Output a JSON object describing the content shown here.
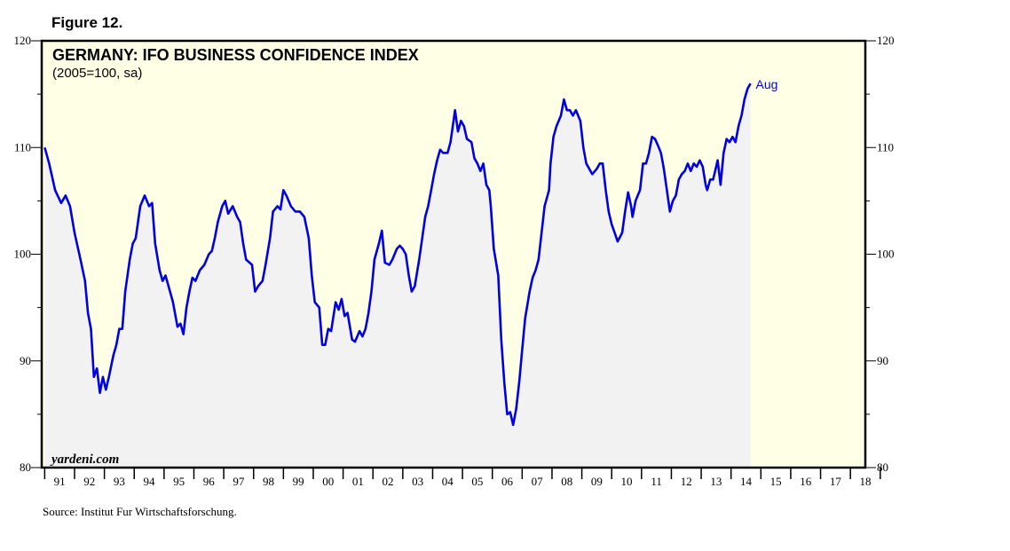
{
  "figure_label": "Figure 12.",
  "source": "Source:  Institut Fur Wirtschaftsforschung.",
  "colors": {
    "line": "#0000e0",
    "background": "#ffffe6",
    "area": "#f2f2f2",
    "annotation": "#0000e0"
  },
  "chart_data": {
    "type": "line",
    "title": "GERMANY: IFO BUSINESS CONFIDENCE INDEX",
    "subtitle": "(2005=100, sa)",
    "watermark": "yardeni.com",
    "annotation": "Aug",
    "ylim": [
      80,
      120
    ],
    "xlim": [
      1990.9,
      2018.5
    ],
    "y_ticks": [
      80,
      90,
      100,
      110,
      120
    ],
    "y_tick_labels": [
      "80",
      "90",
      "100",
      "110",
      "120"
    ],
    "x_tick_labels": [
      "91",
      "92",
      "93",
      "94",
      "95",
      "96",
      "97",
      "98",
      "99",
      "00",
      "01",
      "02",
      "03",
      "04",
      "05",
      "06",
      "07",
      "08",
      "09",
      "10",
      "11",
      "12",
      "13",
      "14",
      "15",
      "16",
      "17",
      "18"
    ],
    "grid": false,
    "series": [
      {
        "name": "IFO Business Confidence Index",
        "points": [
          [
            1991.0,
            110.0
          ],
          [
            1991.15,
            108.5
          ],
          [
            1991.35,
            106.0
          ],
          [
            1991.55,
            104.8
          ],
          [
            1991.7,
            105.5
          ],
          [
            1991.85,
            104.5
          ],
          [
            1992.0,
            102.0
          ],
          [
            1992.2,
            99.5
          ],
          [
            1992.35,
            97.5
          ],
          [
            1992.45,
            94.5
          ],
          [
            1992.55,
            93.0
          ],
          [
            1992.65,
            88.5
          ],
          [
            1992.75,
            89.3
          ],
          [
            1992.85,
            87.0
          ],
          [
            1992.95,
            88.5
          ],
          [
            1993.05,
            87.3
          ],
          [
            1993.15,
            88.5
          ],
          [
            1993.3,
            90.5
          ],
          [
            1993.4,
            91.5
          ],
          [
            1993.5,
            93.0
          ],
          [
            1993.6,
            93.0
          ],
          [
            1993.7,
            96.5
          ],
          [
            1993.85,
            99.5
          ],
          [
            1993.95,
            101.0
          ],
          [
            1994.05,
            101.5
          ],
          [
            1994.2,
            104.5
          ],
          [
            1994.35,
            105.5
          ],
          [
            1994.5,
            104.5
          ],
          [
            1994.6,
            104.8
          ],
          [
            1994.7,
            101.0
          ],
          [
            1994.85,
            98.5
          ],
          [
            1994.95,
            97.5
          ],
          [
            1995.05,
            98.0
          ],
          [
            1995.2,
            96.5
          ],
          [
            1995.3,
            95.5
          ],
          [
            1995.45,
            93.2
          ],
          [
            1995.55,
            93.5
          ],
          [
            1995.65,
            92.5
          ],
          [
            1995.75,
            95.0
          ],
          [
            1995.85,
            96.5
          ],
          [
            1995.95,
            97.8
          ],
          [
            1996.05,
            97.5
          ],
          [
            1996.2,
            98.5
          ],
          [
            1996.35,
            99.0
          ],
          [
            1996.5,
            100.0
          ],
          [
            1996.6,
            100.3
          ],
          [
            1996.7,
            101.5
          ],
          [
            1996.8,
            103.0
          ],
          [
            1996.95,
            104.5
          ],
          [
            1997.05,
            105.0
          ],
          [
            1997.15,
            103.8
          ],
          [
            1997.3,
            104.5
          ],
          [
            1997.45,
            103.5
          ],
          [
            1997.55,
            103.0
          ],
          [
            1997.65,
            101.0
          ],
          [
            1997.75,
            99.5
          ],
          [
            1997.95,
            99.0
          ],
          [
            1998.05,
            96.5
          ],
          [
            1998.15,
            97.0
          ],
          [
            1998.3,
            97.5
          ],
          [
            1998.4,
            99.0
          ],
          [
            1998.55,
            101.5
          ],
          [
            1998.65,
            104.0
          ],
          [
            1998.8,
            104.5
          ],
          [
            1998.9,
            104.2
          ],
          [
            1999.0,
            106.0
          ],
          [
            1999.1,
            105.5
          ],
          [
            1999.25,
            104.5
          ],
          [
            1999.4,
            104.0
          ],
          [
            1999.55,
            104.0
          ],
          [
            1999.7,
            103.5
          ],
          [
            1999.85,
            101.5
          ],
          [
            1999.95,
            98.0
          ],
          [
            2000.05,
            95.5
          ],
          [
            2000.2,
            95.0
          ],
          [
            2000.3,
            91.5
          ],
          [
            2000.4,
            91.5
          ],
          [
            2000.5,
            93.0
          ],
          [
            2000.6,
            92.8
          ],
          [
            2000.75,
            95.5
          ],
          [
            2000.85,
            94.8
          ],
          [
            2000.95,
            95.8
          ],
          [
            2001.05,
            94.2
          ],
          [
            2001.15,
            94.5
          ],
          [
            2001.3,
            92.0
          ],
          [
            2001.4,
            91.8
          ],
          [
            2001.55,
            92.8
          ],
          [
            2001.65,
            92.3
          ],
          [
            2001.75,
            93.0
          ],
          [
            2001.85,
            94.5
          ],
          [
            2001.95,
            96.5
          ],
          [
            2002.05,
            99.5
          ],
          [
            2002.2,
            101.0
          ],
          [
            2002.3,
            102.2
          ],
          [
            2002.4,
            99.2
          ],
          [
            2002.55,
            99.0
          ],
          [
            2002.65,
            99.5
          ],
          [
            2002.8,
            100.5
          ],
          [
            2002.9,
            100.8
          ],
          [
            2003.0,
            100.5
          ],
          [
            2003.1,
            100.0
          ],
          [
            2003.2,
            98.0
          ],
          [
            2003.3,
            96.5
          ],
          [
            2003.4,
            97.0
          ],
          [
            2003.55,
            99.5
          ],
          [
            2003.65,
            101.5
          ],
          [
            2003.75,
            103.5
          ],
          [
            2003.85,
            104.5
          ],
          [
            2003.95,
            106.0
          ],
          [
            2004.05,
            107.5
          ],
          [
            2004.15,
            108.8
          ],
          [
            2004.25,
            109.8
          ],
          [
            2004.35,
            109.5
          ],
          [
            2004.5,
            109.5
          ],
          [
            2004.6,
            110.5
          ],
          [
            2004.7,
            112.5
          ],
          [
            2004.75,
            113.5
          ],
          [
            2004.85,
            111.5
          ],
          [
            2004.95,
            112.5
          ],
          [
            2005.05,
            112.0
          ],
          [
            2005.15,
            110.8
          ],
          [
            2005.3,
            110.5
          ],
          [
            2005.4,
            109.0
          ],
          [
            2005.5,
            108.5
          ],
          [
            2005.6,
            107.8
          ],
          [
            2005.7,
            108.5
          ],
          [
            2005.8,
            106.5
          ],
          [
            2005.9,
            106.0
          ],
          [
            2005.95,
            104.5
          ],
          [
            2006.05,
            100.5
          ],
          [
            2006.2,
            98.0
          ],
          [
            2006.3,
            92.0
          ],
          [
            2006.4,
            88.0
          ],
          [
            2006.5,
            85.0
          ],
          [
            2006.6,
            85.2
          ],
          [
            2006.7,
            84.0
          ],
          [
            2006.8,
            85.5
          ],
          [
            2006.9,
            88.0
          ],
          [
            2007.0,
            91.0
          ],
          [
            2007.1,
            94.0
          ],
          [
            2007.25,
            96.5
          ],
          [
            2007.35,
            97.8
          ],
          [
            2007.45,
            98.5
          ],
          [
            2007.55,
            99.5
          ],
          [
            2007.65,
            102.0
          ],
          [
            2007.75,
            104.5
          ],
          [
            2007.9,
            106.0
          ],
          [
            2007.95,
            108.5
          ],
          [
            2008.05,
            111.0
          ],
          [
            2008.15,
            112.0
          ],
          [
            2008.3,
            113.0
          ],
          [
            2008.4,
            114.5
          ],
          [
            2008.5,
            113.5
          ],
          [
            2008.6,
            113.5
          ],
          [
            2008.7,
            113.0
          ],
          [
            2008.8,
            113.5
          ],
          [
            2008.95,
            112.5
          ],
          [
            2009.05,
            110.0
          ],
          [
            2009.15,
            108.5
          ],
          [
            2009.25,
            108.0
          ],
          [
            2009.35,
            107.5
          ],
          [
            2009.5,
            108.0
          ],
          [
            2009.6,
            108.5
          ],
          [
            2009.7,
            108.5
          ],
          [
            2009.8,
            106.0
          ],
          [
            2009.9,
            104.0
          ],
          [
            2010.0,
            102.8
          ],
          [
            2010.1,
            102.0
          ],
          [
            2010.2,
            101.2
          ],
          [
            2010.35,
            102.0
          ],
          [
            2010.45,
            104.0
          ],
          [
            2010.55,
            105.8
          ],
          [
            2010.65,
            104.5
          ],
          [
            2010.7,
            103.5
          ],
          [
            2010.8,
            105.0
          ],
          [
            2010.95,
            106.0
          ],
          [
            2011.05,
            108.5
          ],
          [
            2011.15,
            108.5
          ],
          [
            2011.25,
            109.5
          ],
          [
            2011.35,
            111.0
          ],
          [
            2011.45,
            110.8
          ],
          [
            2011.55,
            110.2
          ],
          [
            2011.65,
            109.5
          ],
          [
            2011.75,
            108.0
          ],
          [
            2011.85,
            106.0
          ],
          [
            2011.95,
            104.0
          ],
          [
            2012.05,
            105.0
          ],
          [
            2012.15,
            105.5
          ],
          [
            2012.25,
            107.0
          ],
          [
            2012.35,
            107.5
          ],
          [
            2012.45,
            107.8
          ],
          [
            2012.55,
            108.5
          ],
          [
            2012.65,
            107.8
          ],
          [
            2012.75,
            108.5
          ],
          [
            2012.85,
            108.2
          ],
          [
            2012.95,
            108.8
          ],
          [
            2013.05,
            108.2
          ],
          [
            2013.15,
            106.5
          ],
          [
            2013.2,
            106.0
          ],
          [
            2013.3,
            107.0
          ],
          [
            2013.4,
            107.0
          ],
          [
            2013.55,
            108.8
          ],
          [
            2013.65,
            106.5
          ],
          [
            2013.75,
            109.5
          ],
          [
            2013.85,
            110.8
          ],
          [
            2013.95,
            110.5
          ],
          [
            2014.05,
            111.0
          ],
          [
            2014.15,
            110.5
          ],
          [
            2014.25,
            112.0
          ],
          [
            2014.35,
            113.0
          ],
          [
            2014.45,
            114.5
          ],
          [
            2014.55,
            115.5
          ],
          [
            2014.65,
            116.0
          ]
        ]
      }
    ]
  }
}
